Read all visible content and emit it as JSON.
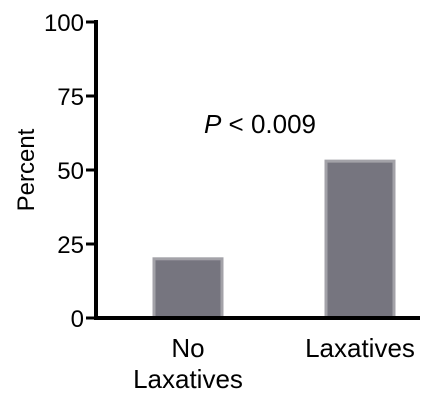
{
  "chart_data": {
    "type": "bar",
    "categories": [
      [
        "No",
        "Laxatives"
      ],
      [
        "Laxatives"
      ]
    ],
    "values": [
      20,
      53
    ],
    "ylabel": "Percent",
    "ylim": [
      0,
      100
    ],
    "yticks": [
      "0",
      "25",
      "50",
      "75",
      "100"
    ],
    "annotation": {
      "italic": "P",
      "rest": " < 0.009"
    },
    "grid": false,
    "legend": "none",
    "colors": {
      "bar_fill": "#76757f",
      "bar_edge": "#a3a2a8",
      "axis": "#000000"
    }
  }
}
